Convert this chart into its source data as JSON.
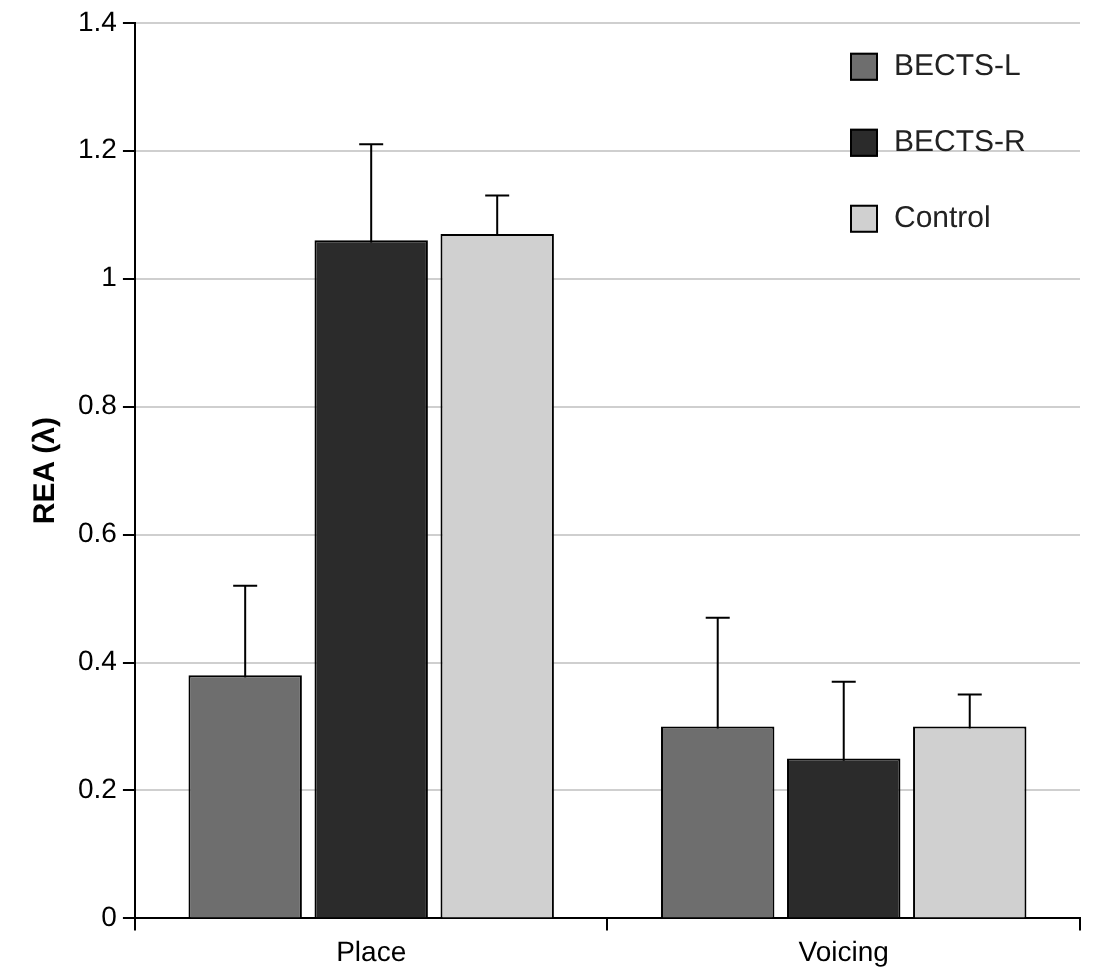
{
  "chart_data": {
    "type": "bar",
    "ylabel": "REA (λ)",
    "categories": [
      "Place",
      "Voicing"
    ],
    "series": [
      {
        "name": "BECTS-L",
        "color": "#6e6e6e",
        "values": [
          0.38,
          0.3
        ],
        "errors": [
          0.14,
          0.17
        ]
      },
      {
        "name": "BECTS-R",
        "color": "#2b2b2b",
        "values": [
          1.06,
          0.25
        ],
        "errors": [
          0.15,
          0.12
        ]
      },
      {
        "name": "Control",
        "color": "#d0d0d0",
        "values": [
          1.07,
          0.3
        ],
        "errors": [
          0.06,
          0.05
        ]
      }
    ],
    "ylim": [
      0,
      1.4
    ],
    "yticks": [
      0,
      0.2,
      0.4,
      0.6,
      0.8,
      1,
      1.2,
      1.4
    ],
    "grid": "y",
    "legend": "top right"
  }
}
